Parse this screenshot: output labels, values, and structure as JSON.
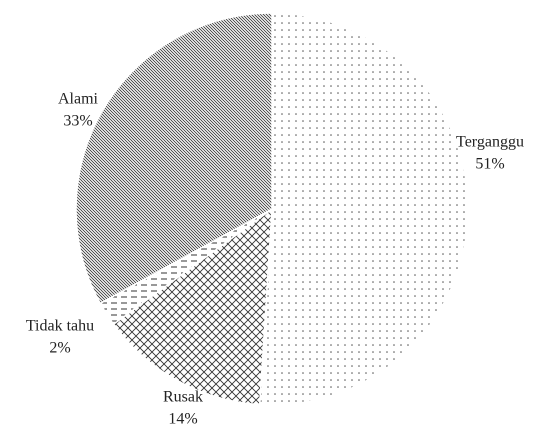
{
  "chart_data": {
    "type": "pie",
    "categories": [
      "Terganggu",
      "Rusak",
      "Tidak tahu",
      "Alami"
    ],
    "values": [
      51,
      14,
      2,
      33
    ],
    "value_labels": [
      "51%",
      "14%",
      "2%",
      "33%"
    ],
    "patterns": [
      "dots",
      "crosshatch",
      "dashes",
      "diagonal"
    ],
    "color": "#333333"
  }
}
